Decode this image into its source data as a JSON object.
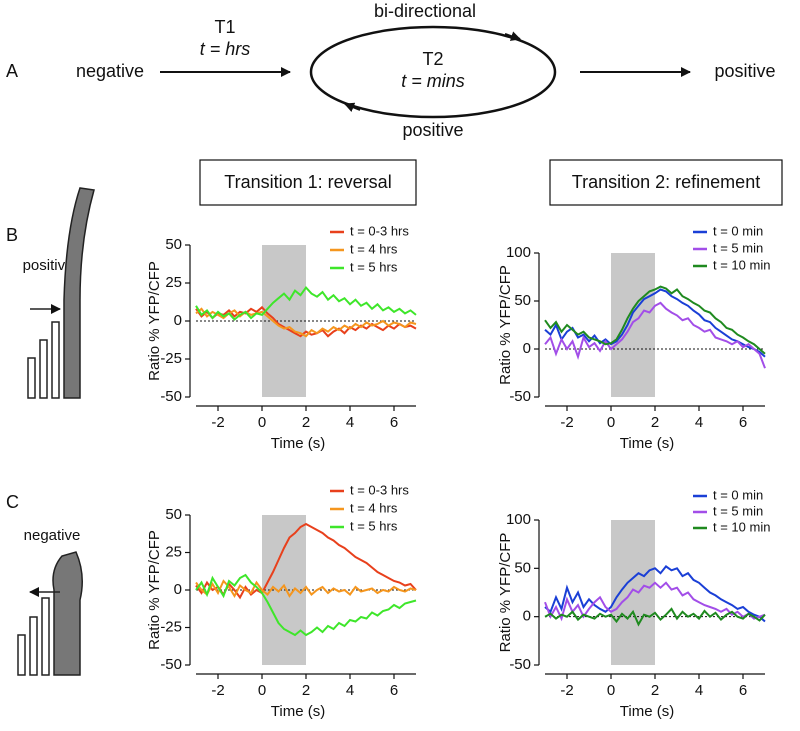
{
  "diagram": {
    "panel": "A",
    "left": "negative",
    "t1": "T1",
    "t1_time": "t = hrs",
    "top": "bi-directional",
    "t2": "T2",
    "t2_time": "t = mins",
    "bottom": "positive",
    "right": "positive"
  },
  "headers": [
    "Transition 1: reversal",
    "Transition 2: refinement"
  ],
  "panels": [
    {
      "label": "B",
      "cartoon": "positive"
    },
    {
      "label": "C",
      "cartoon": "negative"
    }
  ],
  "chart_data": [
    {
      "type": "line",
      "x_label": "Time (s)",
      "y_label": "Ratio % YFP/CFP",
      "x": [
        -3,
        -2.75,
        -2.5,
        -2.25,
        -2,
        -1.75,
        -1.5,
        -1.25,
        -1,
        -0.75,
        -0.5,
        -0.25,
        0,
        0.25,
        0.5,
        0.75,
        1,
        1.25,
        1.5,
        1.75,
        2,
        2.25,
        2.5,
        2.75,
        3,
        3.25,
        3.5,
        3.75,
        4,
        4.25,
        4.5,
        4.75,
        5,
        5.25,
        5.5,
        5.75,
        6,
        6.25,
        6.5,
        6.75,
        7
      ],
      "xlim": [
        -3,
        7
      ],
      "xticks": [
        -2,
        0,
        2,
        4,
        6
      ],
      "ylim": [
        -50,
        50
      ],
      "yticks": [
        -50,
        -25,
        0,
        25,
        50
      ],
      "shaded_interval": [
        0,
        2
      ],
      "reference_line": 0,
      "series": [
        {
          "name": "t = 0-3 hrs",
          "color": "#e8401c",
          "values": [
            8,
            3,
            6,
            2,
            5,
            4,
            7,
            3,
            6,
            5,
            8,
            6,
            9,
            5,
            2,
            -2,
            -4,
            -6,
            -8,
            -10,
            -7,
            -9,
            -8,
            -6,
            -10,
            -7,
            -5,
            -8,
            -4,
            -6,
            -3,
            -5,
            -2,
            -4,
            -6,
            -3,
            -5,
            -2,
            -4,
            -3,
            -5
          ]
        },
        {
          "name": "t = 4 hrs",
          "color": "#f5961e",
          "values": [
            5,
            8,
            3,
            6,
            4,
            2,
            5,
            7,
            3,
            6,
            4,
            5,
            6,
            3,
            0,
            -3,
            -5,
            -4,
            -7,
            -8,
            -10,
            -6,
            -8,
            -5,
            -7,
            -4,
            -6,
            -3,
            -5,
            -2,
            -4,
            -1,
            -3,
            -2,
            0,
            -3,
            -1,
            -2,
            -4,
            -1,
            -2
          ]
        },
        {
          "name": "t = 5 hrs",
          "color": "#3ee62a",
          "values": [
            10,
            4,
            7,
            2,
            6,
            3,
            5,
            1,
            4,
            6,
            2,
            5,
            4,
            8,
            12,
            15,
            18,
            14,
            20,
            17,
            22,
            18,
            16,
            19,
            14,
            17,
            13,
            15,
            11,
            14,
            10,
            12,
            8,
            11,
            7,
            9,
            6,
            8,
            5,
            7,
            4
          ]
        }
      ]
    },
    {
      "type": "line",
      "x_label": "Time (s)",
      "y_label": "Ratio % YFP/CFP",
      "x": [
        -3,
        -2.75,
        -2.5,
        -2.25,
        -2,
        -1.75,
        -1.5,
        -1.25,
        -1,
        -0.75,
        -0.5,
        -0.25,
        0,
        0.25,
        0.5,
        0.75,
        1,
        1.25,
        1.5,
        1.75,
        2,
        2.25,
        2.5,
        2.75,
        3,
        3.25,
        3.5,
        3.75,
        4,
        4.25,
        4.5,
        4.75,
        5,
        5.25,
        5.5,
        5.75,
        6,
        6.25,
        6.5,
        6.75,
        7
      ],
      "xlim": [
        -3,
        7
      ],
      "xticks": [
        -2,
        0,
        2,
        4,
        6
      ],
      "ylim": [
        -50,
        100
      ],
      "yticks": [
        -50,
        0,
        50,
        100
      ],
      "shaded_interval": [
        0,
        2
      ],
      "reference_line": 0,
      "series": [
        {
          "name": "t = 0 min",
          "color": "#1a3fd6",
          "values": [
            20,
            15,
            25,
            10,
            18,
            22,
            12,
            15,
            8,
            14,
            6,
            10,
            5,
            8,
            15,
            25,
            38,
            45,
            52,
            55,
            58,
            62,
            60,
            55,
            52,
            48,
            45,
            40,
            36,
            30,
            28,
            22,
            18,
            14,
            10,
            8,
            5,
            2,
            0,
            -3,
            -8
          ]
        },
        {
          "name": "t = 5 min",
          "color": "#a24ee8",
          "values": [
            5,
            12,
            -5,
            10,
            0,
            8,
            -8,
            12,
            2,
            6,
            -2,
            8,
            0,
            5,
            10,
            18,
            28,
            32,
            40,
            38,
            45,
            48,
            42,
            38,
            35,
            30,
            32,
            25,
            22,
            18,
            20,
            12,
            10,
            8,
            5,
            8,
            2,
            5,
            0,
            -5,
            -20
          ]
        },
        {
          "name": "t = 10 min",
          "color": "#1f8a1f",
          "values": [
            30,
            22,
            28,
            18,
            25,
            20,
            15,
            18,
            12,
            10,
            8,
            5,
            6,
            10,
            20,
            32,
            42,
            50,
            55,
            60,
            62,
            65,
            63,
            58,
            62,
            55,
            52,
            48,
            45,
            40,
            38,
            32,
            28,
            22,
            20,
            15,
            12,
            8,
            5,
            0,
            -5
          ]
        }
      ]
    },
    {
      "type": "line",
      "x_label": "Time (s)",
      "y_label": "Ratio % YFP/CFP",
      "x": [
        -3,
        -2.75,
        -2.5,
        -2.25,
        -2,
        -1.75,
        -1.5,
        -1.25,
        -1,
        -0.75,
        -0.5,
        -0.25,
        0,
        0.25,
        0.5,
        0.75,
        1,
        1.25,
        1.5,
        1.75,
        2,
        2.25,
        2.5,
        2.75,
        3,
        3.25,
        3.5,
        3.75,
        4,
        4.25,
        4.5,
        4.75,
        5,
        5.25,
        5.5,
        5.75,
        6,
        6.25,
        6.5,
        6.75,
        7
      ],
      "xlim": [
        -3,
        7
      ],
      "xticks": [
        -2,
        0,
        2,
        4,
        6
      ],
      "ylim": [
        -50,
        50
      ],
      "yticks": [
        -50,
        -25,
        0,
        25,
        50
      ],
      "shaded_interval": [
        0,
        2
      ],
      "reference_line": 0,
      "series": [
        {
          "name": "t = 0-3 hrs",
          "color": "#e8401c",
          "values": [
            3,
            -2,
            5,
            0,
            2,
            -3,
            4,
            0,
            -5,
            2,
            -3,
            0,
            -2,
            5,
            12,
            20,
            28,
            35,
            38,
            42,
            44,
            42,
            40,
            38,
            35,
            33,
            30,
            28,
            25,
            22,
            20,
            18,
            15,
            12,
            10,
            8,
            6,
            5,
            3,
            4,
            0
          ]
        },
        {
          "name": "t = 4 hrs",
          "color": "#f5961e",
          "values": [
            5,
            0,
            -3,
            4,
            -2,
            6,
            2,
            -4,
            3,
            0,
            -2,
            5,
            0,
            -3,
            2,
            -1,
            3,
            -4,
            1,
            -2,
            2,
            -3,
            0,
            2,
            -2,
            1,
            -1,
            0,
            -3,
            2,
            -1,
            0,
            1,
            -2,
            0,
            -1,
            2,
            0,
            -1,
            1,
            0
          ]
        },
        {
          "name": "t = 5 hrs",
          "color": "#3ee62a",
          "values": [
            0,
            5,
            -3,
            8,
            2,
            -4,
            6,
            3,
            8,
            10,
            5,
            2,
            -2,
            -8,
            -15,
            -22,
            -26,
            -28,
            -30,
            -27,
            -30,
            -28,
            -25,
            -28,
            -24,
            -26,
            -22,
            -24,
            -20,
            -21,
            -18,
            -19,
            -15,
            -17,
            -14,
            -13,
            -10,
            -12,
            -9,
            -8,
            -7
          ]
        }
      ]
    },
    {
      "type": "line",
      "x_label": "Time (s)",
      "y_label": "Ratio % YFP/CFP",
      "x": [
        -3,
        -2.75,
        -2.5,
        -2.25,
        -2,
        -1.75,
        -1.5,
        -1.25,
        -1,
        -0.75,
        -0.5,
        -0.25,
        0,
        0.25,
        0.5,
        0.75,
        1,
        1.25,
        1.5,
        1.75,
        2,
        2.25,
        2.5,
        2.75,
        3,
        3.25,
        3.5,
        3.75,
        4,
        4.25,
        4.5,
        4.75,
        5,
        5.25,
        5.5,
        5.75,
        6,
        6.25,
        6.5,
        6.75,
        7
      ],
      "xlim": [
        -3,
        7
      ],
      "xticks": [
        -2,
        0,
        2,
        4,
        6
      ],
      "ylim": [
        -50,
        100
      ],
      "yticks": [
        -50,
        0,
        50,
        100
      ],
      "shaded_interval": [
        0,
        2
      ],
      "reference_line": 0,
      "series": [
        {
          "name": "t = 0 min",
          "color": "#1a3fd6",
          "values": [
            10,
            5,
            20,
            8,
            30,
            15,
            25,
            10,
            18,
            12,
            8,
            5,
            10,
            20,
            28,
            35,
            40,
            45,
            42,
            48,
            50,
            45,
            52,
            48,
            50,
            42,
            45,
            38,
            35,
            30,
            25,
            22,
            18,
            15,
            12,
            8,
            10,
            5,
            2,
            0,
            -5
          ]
        },
        {
          "name": "t = 5 min",
          "color": "#a24ee8",
          "values": [
            15,
            0,
            10,
            -2,
            18,
            5,
            12,
            0,
            8,
            15,
            20,
            10,
            5,
            8,
            15,
            20,
            28,
            25,
            32,
            30,
            35,
            30,
            35,
            28,
            30,
            22,
            25,
            18,
            15,
            12,
            10,
            8,
            5,
            8,
            2,
            5,
            0,
            3,
            -2,
            0,
            2
          ]
        },
        {
          "name": "t = 10 min",
          "color": "#1f8a1f",
          "values": [
            0,
            3,
            -2,
            2,
            0,
            5,
            -3,
            2,
            0,
            -2,
            3,
            0,
            2,
            -5,
            3,
            -2,
            5,
            -8,
            2,
            0,
            4,
            -3,
            2,
            8,
            -2,
            5,
            0,
            3,
            -2,
            6,
            0,
            4,
            -3,
            2,
            5,
            0,
            -2,
            3,
            0,
            -4,
            2
          ]
        }
      ]
    }
  ]
}
